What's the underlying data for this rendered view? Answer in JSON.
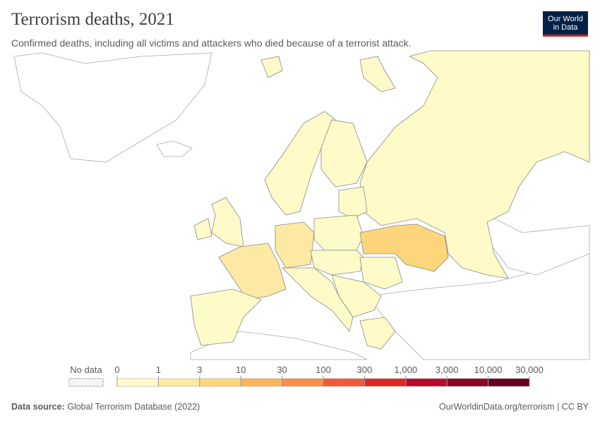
{
  "header": {
    "title": "Terrorism deaths, 2021",
    "subtitle": "Confirmed deaths, including all victims and attackers who died because of a terrorist attack.",
    "logo": [
      "Our World",
      "in Data"
    ]
  },
  "legend": {
    "no_data": "No data",
    "ticks": [
      0,
      1,
      3,
      10,
      30,
      100,
      300,
      {
        "value": 1000,
        "label": "1,000"
      },
      {
        "value": 3000,
        "label": "3,000"
      },
      {
        "value": 10000,
        "label": "10,000"
      },
      {
        "value": 30000,
        "label": "30,000"
      }
    ],
    "colors": [
      "#fffbc9",
      "#fee9a4",
      "#fdd57a",
      "#fcb55e",
      "#f98e48",
      "#ef5b37",
      "#d92b25",
      "#b50d2a",
      "#8c0626",
      "#67001f"
    ]
  },
  "footer": {
    "source_label": "Data source:",
    "source": "Global Terrorism Database (2022)",
    "url": "OurWorldinData.org/terrorism | CC BY"
  }
}
